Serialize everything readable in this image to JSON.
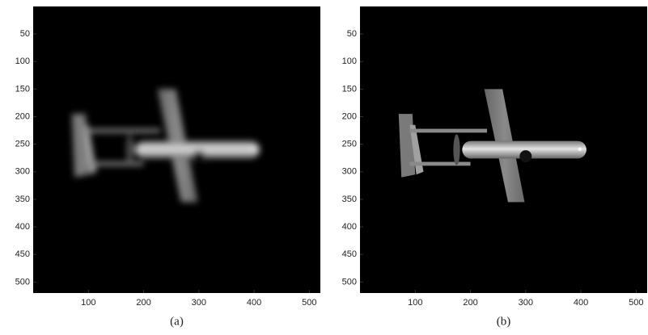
{
  "panels": [
    {
      "caption": "(a)",
      "xlim": [
        0,
        520
      ],
      "ylim": [
        0,
        520
      ],
      "xticks": [
        100,
        200,
        300,
        400,
        500
      ],
      "yticks": [
        50,
        100,
        150,
        200,
        250,
        300,
        350,
        400,
        450,
        500
      ]
    },
    {
      "caption": "(b)",
      "xlim": [
        0,
        520
      ],
      "ylim": [
        0,
        520
      ],
      "xticks": [
        100,
        200,
        300,
        400,
        500
      ],
      "yticks": [
        50,
        100,
        150,
        200,
        250,
        300,
        350,
        400,
        450,
        500
      ]
    }
  ]
}
